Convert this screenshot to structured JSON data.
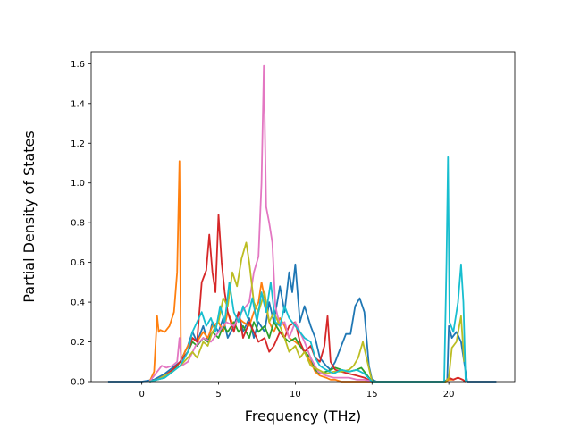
{
  "chart_data": {
    "type": "line",
    "title": "",
    "xlabel": "Frequency (THz)",
    "ylabel": "Partial Density of States",
    "xlim": [
      -3.3,
      24.3
    ],
    "ylim": [
      0.0,
      1.66
    ],
    "xticks": [
      0,
      5,
      10,
      15,
      20
    ],
    "yticks": [
      0.0,
      0.2,
      0.4,
      0.6,
      0.8,
      1.0,
      1.2,
      1.4,
      1.6
    ],
    "xtick_labels": [
      "0",
      "5",
      "10",
      "15",
      "20"
    ],
    "ytick_labels": [
      "0.0",
      "0.2",
      "0.4",
      "0.6",
      "0.8",
      "1.0",
      "1.2",
      "1.4",
      "1.6"
    ],
    "grid": false,
    "legend": "none",
    "series": [
      {
        "color": "#1f77b4",
        "x": [
          -2.2,
          0.0,
          0.8,
          1.5,
          2.5,
          3.0,
          3.3,
          3.6,
          4.0,
          4.3,
          4.6,
          5.0,
          5.3,
          5.6,
          6.0,
          6.3,
          6.6,
          7.0,
          7.3,
          7.6,
          8.0,
          8.3,
          8.6,
          9.0,
          9.3,
          9.6,
          9.8,
          10.0,
          10.3,
          10.6,
          11.0,
          11.3,
          11.6,
          12.0,
          12.3,
          12.6,
          13.0,
          13.3,
          13.6,
          13.9,
          14.2,
          14.5,
          14.8,
          15.0,
          15.3,
          19.7,
          19.9,
          20.0,
          20.2,
          20.5,
          20.8,
          21.0,
          21.2,
          23.1
        ],
        "y": [
          0.0,
          0.0,
          0.01,
          0.04,
          0.1,
          0.18,
          0.25,
          0.2,
          0.28,
          0.2,
          0.3,
          0.25,
          0.32,
          0.22,
          0.28,
          0.35,
          0.25,
          0.32,
          0.22,
          0.3,
          0.25,
          0.4,
          0.3,
          0.48,
          0.35,
          0.55,
          0.45,
          0.59,
          0.3,
          0.38,
          0.28,
          0.22,
          0.12,
          0.08,
          0.06,
          0.1,
          0.18,
          0.24,
          0.24,
          0.38,
          0.42,
          0.35,
          0.08,
          0.01,
          0.0,
          0.0,
          0.01,
          0.28,
          0.22,
          0.25,
          0.2,
          0.1,
          0.0,
          0.0
        ]
      },
      {
        "color": "#ff7f0e",
        "x": [
          0.5,
          0.8,
          1.0,
          1.1,
          1.2,
          1.5,
          1.8,
          2.1,
          2.3,
          2.45,
          2.55,
          2.65,
          2.8,
          3.0,
          3.3,
          3.6,
          4.0,
          4.3,
          4.6,
          5.0,
          5.3,
          5.6,
          6.0,
          6.3,
          6.6,
          7.0,
          7.3,
          7.6,
          7.8,
          8.0,
          8.3,
          8.6,
          9.0,
          9.3,
          9.6,
          10.0,
          10.3,
          10.6,
          11.0,
          11.3,
          11.6,
          12.0,
          12.3,
          12.6,
          13.0,
          13.5,
          14.0,
          14.5,
          15.0,
          19.8,
          20.0,
          20.3,
          20.6,
          20.9,
          21.1
        ],
        "y": [
          0.0,
          0.05,
          0.33,
          0.25,
          0.26,
          0.25,
          0.28,
          0.35,
          0.55,
          1.11,
          0.1,
          0.12,
          0.15,
          0.18,
          0.22,
          0.2,
          0.25,
          0.22,
          0.28,
          0.3,
          0.25,
          0.35,
          0.28,
          0.32,
          0.3,
          0.28,
          0.35,
          0.4,
          0.5,
          0.42,
          0.3,
          0.25,
          0.32,
          0.28,
          0.22,
          0.2,
          0.18,
          0.15,
          0.1,
          0.05,
          0.03,
          0.02,
          0.01,
          0.01,
          0.0,
          0.0,
          0.0,
          0.0,
          0.0,
          0.0,
          0.01,
          0.01,
          0.02,
          0.01,
          0.0
        ]
      },
      {
        "color": "#2ca02c",
        "x": [
          0.5,
          1.0,
          1.5,
          2.0,
          2.5,
          3.0,
          3.3,
          3.6,
          4.0,
          4.3,
          4.6,
          5.0,
          5.3,
          5.6,
          6.0,
          6.3,
          6.6,
          7.0,
          7.3,
          7.6,
          8.0,
          8.3,
          8.6,
          9.0,
          9.3,
          9.6,
          10.0,
          10.3,
          10.6,
          11.0,
          11.3,
          11.6,
          12.0,
          12.3,
          12.6,
          13.0,
          13.5,
          14.0,
          14.3,
          14.6,
          14.9,
          15.1
        ],
        "y": [
          0.0,
          0.01,
          0.02,
          0.05,
          0.1,
          0.15,
          0.2,
          0.18,
          0.22,
          0.2,
          0.25,
          0.22,
          0.28,
          0.25,
          0.3,
          0.25,
          0.28,
          0.22,
          0.3,
          0.25,
          0.28,
          0.22,
          0.3,
          0.25,
          0.22,
          0.2,
          0.22,
          0.18,
          0.15,
          0.12,
          0.06,
          0.04,
          0.05,
          0.06,
          0.07,
          0.06,
          0.05,
          0.06,
          0.07,
          0.04,
          0.01,
          0.0
        ]
      },
      {
        "color": "#d62728",
        "x": [
          0.5,
          1.0,
          1.5,
          2.0,
          2.5,
          3.0,
          3.3,
          3.6,
          3.9,
          4.2,
          4.4,
          4.6,
          4.8,
          5.0,
          5.2,
          5.4,
          5.6,
          6.0,
          6.3,
          6.6,
          7.0,
          7.3,
          7.6,
          8.0,
          8.3,
          8.6,
          9.0,
          9.3,
          9.6,
          10.0,
          10.3,
          10.6,
          11.0,
          11.3,
          11.6,
          11.9,
          12.1,
          12.3,
          12.6,
          13.0,
          13.5,
          14.0,
          14.5,
          15.0,
          19.8,
          20.0,
          20.3,
          20.6,
          20.9,
          21.1
        ],
        "y": [
          0.0,
          0.01,
          0.03,
          0.06,
          0.1,
          0.15,
          0.22,
          0.2,
          0.5,
          0.56,
          0.74,
          0.55,
          0.45,
          0.84,
          0.6,
          0.45,
          0.35,
          0.25,
          0.35,
          0.22,
          0.3,
          0.25,
          0.2,
          0.22,
          0.15,
          0.18,
          0.25,
          0.22,
          0.28,
          0.3,
          0.2,
          0.15,
          0.18,
          0.12,
          0.1,
          0.18,
          0.33,
          0.1,
          0.06,
          0.05,
          0.04,
          0.03,
          0.02,
          0.0,
          0.0,
          0.02,
          0.01,
          0.02,
          0.01,
          0.0
        ]
      },
      {
        "color": "#e377c2",
        "x": [
          0.5,
          1.0,
          1.3,
          1.6,
          2.0,
          2.3,
          2.45,
          2.6,
          3.0,
          3.5,
          4.0,
          4.5,
          5.0,
          5.5,
          6.0,
          6.5,
          7.0,
          7.3,
          7.6,
          7.8,
          7.95,
          8.1,
          8.3,
          8.5,
          8.7,
          9.0,
          9.3,
          9.6,
          10.0,
          10.3,
          10.6,
          11.0,
          11.5,
          12.0,
          12.5,
          13.0,
          13.5,
          14.0,
          14.5,
          15.0
        ],
        "y": [
          0.0,
          0.05,
          0.08,
          0.07,
          0.08,
          0.1,
          0.22,
          0.08,
          0.1,
          0.18,
          0.22,
          0.2,
          0.25,
          0.3,
          0.28,
          0.35,
          0.4,
          0.55,
          0.63,
          1.0,
          1.59,
          0.88,
          0.8,
          0.7,
          0.38,
          0.28,
          0.3,
          0.22,
          0.3,
          0.25,
          0.2,
          0.12,
          0.05,
          0.03,
          0.02,
          0.02,
          0.02,
          0.01,
          0.01,
          0.0
        ]
      },
      {
        "color": "#bcbd22",
        "x": [
          0.5,
          1.0,
          1.5,
          2.0,
          2.5,
          3.0,
          3.3,
          3.6,
          4.0,
          4.3,
          4.6,
          5.0,
          5.3,
          5.6,
          5.9,
          6.2,
          6.5,
          6.8,
          7.0,
          7.3,
          7.6,
          8.0,
          8.3,
          8.6,
          9.0,
          9.3,
          9.6,
          10.0,
          10.3,
          10.6,
          11.0,
          11.5,
          12.0,
          12.5,
          13.0,
          13.5,
          13.8,
          14.1,
          14.4,
          14.7,
          15.0,
          19.8,
          20.0,
          20.2,
          20.5,
          20.8,
          21.0
        ],
        "y": [
          0.0,
          0.01,
          0.03,
          0.05,
          0.08,
          0.12,
          0.15,
          0.12,
          0.2,
          0.18,
          0.25,
          0.3,
          0.42,
          0.38,
          0.55,
          0.48,
          0.62,
          0.7,
          0.6,
          0.4,
          0.35,
          0.45,
          0.3,
          0.35,
          0.28,
          0.22,
          0.15,
          0.18,
          0.12,
          0.15,
          0.08,
          0.06,
          0.04,
          0.05,
          0.05,
          0.06,
          0.08,
          0.12,
          0.2,
          0.1,
          0.0,
          0.0,
          0.02,
          0.17,
          0.2,
          0.33,
          0.1
        ]
      },
      {
        "color": "#17becf",
        "x": [
          0.5,
          1.0,
          1.5,
          2.0,
          2.5,
          3.0,
          3.3,
          3.6,
          3.9,
          4.2,
          4.5,
          4.8,
          5.1,
          5.4,
          5.7,
          6.0,
          6.3,
          6.6,
          6.9,
          7.2,
          7.5,
          7.8,
          8.1,
          8.4,
          8.7,
          9.0,
          9.3,
          9.6,
          10.0,
          10.3,
          10.6,
          11.0,
          11.3,
          11.6,
          12.0,
          12.5,
          13.0,
          13.5,
          14.0,
          14.5,
          15.0,
          19.7,
          19.85,
          19.95,
          20.05,
          20.3,
          20.6,
          20.8,
          20.95,
          21.1
        ],
        "y": [
          0.0,
          0.01,
          0.02,
          0.05,
          0.08,
          0.15,
          0.25,
          0.3,
          0.35,
          0.28,
          0.32,
          0.25,
          0.38,
          0.3,
          0.5,
          0.35,
          0.3,
          0.38,
          0.32,
          0.42,
          0.3,
          0.45,
          0.35,
          0.5,
          0.3,
          0.28,
          0.38,
          0.32,
          0.28,
          0.25,
          0.22,
          0.2,
          0.12,
          0.08,
          0.06,
          0.04,
          0.06,
          0.05,
          0.06,
          0.04,
          0.0,
          0.0,
          0.6,
          1.13,
          0.3,
          0.25,
          0.4,
          0.59,
          0.4,
          0.0
        ]
      }
    ]
  }
}
